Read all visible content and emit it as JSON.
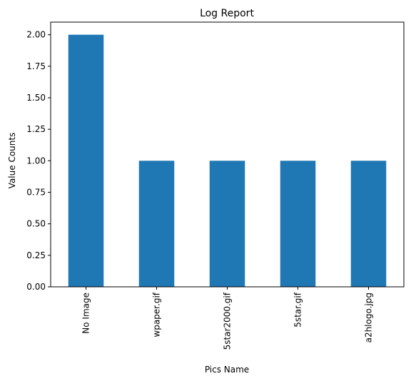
{
  "chart_data": {
    "type": "bar",
    "title": "Log Report",
    "xlabel": "Pics Name",
    "ylabel": "Value Counts",
    "categories": [
      "No Image",
      "wpaper.gif",
      "5star2000.gif",
      "5star.gif",
      "a2hlogo.jpg"
    ],
    "values": [
      2,
      1,
      1,
      1,
      1
    ],
    "ylim": [
      0,
      2.1
    ],
    "yticks": [
      0.0,
      0.25,
      0.5,
      0.75,
      1.0,
      1.25,
      1.5,
      1.75,
      2.0
    ],
    "ytick_labels": [
      "0.00",
      "0.25",
      "0.50",
      "0.75",
      "1.00",
      "1.25",
      "1.50",
      "1.75",
      "2.00"
    ],
    "bar_color": "#1f77b4",
    "grid": false,
    "legend": "none"
  }
}
